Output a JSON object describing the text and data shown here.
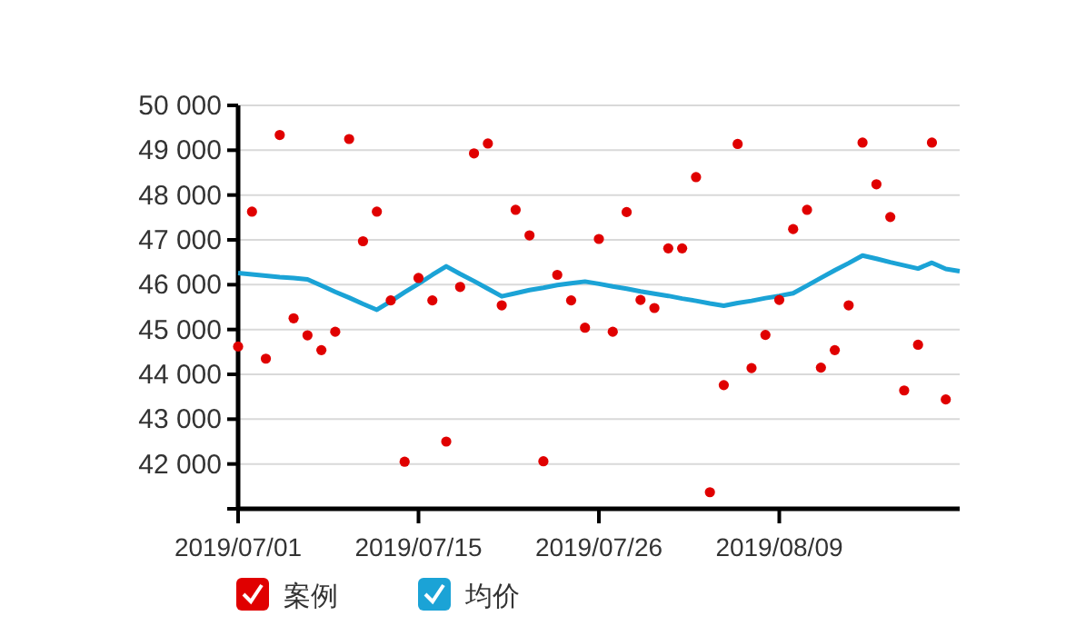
{
  "chart_data": {
    "type": "scatter",
    "categories": [
      "2019/07/01",
      null,
      null,
      null,
      null,
      null,
      null,
      null,
      null,
      null,
      null,
      null,
      null,
      "2019/07/15",
      null,
      null,
      null,
      null,
      null,
      null,
      null,
      null,
      null,
      null,
      null,
      null,
      "2019/07/26",
      null,
      null,
      null,
      null,
      null,
      null,
      null,
      null,
      null,
      null,
      null,
      null,
      "2019/08/09",
      null,
      null,
      null,
      null,
      null,
      null,
      null,
      null,
      null,
      null,
      null,
      null,
      null
    ],
    "series": [
      {
        "name": "案例",
        "marker": "circle",
        "color": "#e00000",
        "values": [
          44620,
          47630,
          44350,
          49340,
          45250,
          44870,
          44540,
          44950,
          49250,
          46970,
          47630,
          45650,
          42050,
          46150,
          45650,
          42500,
          45950,
          48930,
          49150,
          45540,
          47670,
          47100,
          42060,
          46220,
          45650,
          45040,
          47020,
          44950,
          47620,
          45660,
          45480,
          46810,
          46810,
          48400,
          41370,
          43760,
          49140,
          44140,
          44880,
          45660,
          47240,
          47670,
          44150,
          44540,
          45540,
          49170,
          48240,
          47510,
          43640,
          44660,
          49170,
          43440,
          null
        ]
      },
      {
        "name": "均价",
        "type": "line",
        "marker": "none",
        "color": "#1ba3d6",
        "values": [
          46260,
          46230,
          46200,
          46170,
          46150,
          46120,
          45980,
          45840,
          45710,
          45570,
          45440,
          45630,
          45830,
          46020,
          46220,
          46410,
          46240,
          46080,
          45910,
          45740,
          45810,
          45880,
          45930,
          45990,
          46030,
          46070,
          46020,
          45960,
          45910,
          45850,
          45800,
          45750,
          45690,
          45640,
          45580,
          45530,
          45590,
          45640,
          45700,
          45750,
          45810,
          45980,
          46150,
          46320,
          46480,
          46650,
          46580,
          46500,
          46430,
          46360,
          46490,
          46350,
          46300
        ]
      }
    ],
    "ylim": [
      41000,
      50000
    ],
    "yticks": [
      {
        "value": 41000,
        "label": null
      },
      {
        "value": 42000,
        "label": "42 000"
      },
      {
        "value": 43000,
        "label": "43 000"
      },
      {
        "value": 44000,
        "label": "44 000"
      },
      {
        "value": 45000,
        "label": "45 000"
      },
      {
        "value": 46000,
        "label": "46 000"
      },
      {
        "value": 47000,
        "label": "47 000"
      },
      {
        "value": 48000,
        "label": "48 000"
      },
      {
        "value": 49000,
        "label": "49 000"
      },
      {
        "value": 50000,
        "label": "50 000"
      }
    ],
    "grid": "y",
    "legend": "bottom",
    "line_style": "solid"
  }
}
